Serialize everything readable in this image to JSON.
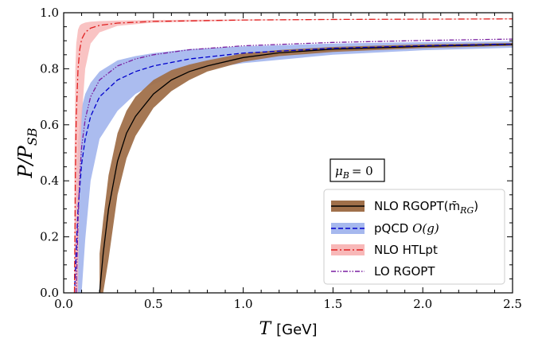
{
  "chart_data": {
    "type": "line",
    "title": "",
    "xlabel": "T",
    "xlabel_unit": "[GeV]",
    "ylabel": "P/P",
    "ylabel_sub": "SB",
    "xlim": [
      0,
      2.5
    ],
    "ylim": [
      0,
      1.0
    ],
    "x_ticks": [
      "0.0",
      "0.5",
      "1.0",
      "1.5",
      "2.0",
      "2.5"
    ],
    "y_ticks": [
      "0.0",
      "0.2",
      "0.4",
      "0.6",
      "0.8",
      "1.0"
    ],
    "grid": false,
    "legend_position": "bottom-right",
    "annotation": {
      "label": "μ",
      "sub": "B",
      "value": "= 0"
    },
    "series": [
      {
        "name": "NLO RGOPT(m̄",
        "name_sub": "RG",
        "name_suffix": ")",
        "style": "solid-line-with-band",
        "line_color": "#000000",
        "band_color": "#a0704a",
        "x": [
          0.2,
          0.22,
          0.25,
          0.3,
          0.35,
          0.4,
          0.5,
          0.6,
          0.7,
          0.8,
          1.0,
          1.2,
          1.5,
          2.0,
          2.5
        ],
        "y": [
          0.0,
          0.14,
          0.3,
          0.47,
          0.57,
          0.63,
          0.71,
          0.76,
          0.79,
          0.81,
          0.84,
          0.857,
          0.87,
          0.88,
          0.887
        ],
        "lower": [
          null,
          0.0,
          0.12,
          0.35,
          0.48,
          0.56,
          0.66,
          0.72,
          0.76,
          0.79,
          0.825,
          0.845,
          0.86,
          0.874,
          0.882
        ],
        "upper": [
          0.14,
          0.26,
          0.42,
          0.57,
          0.65,
          0.7,
          0.76,
          0.795,
          0.815,
          0.83,
          0.855,
          0.867,
          0.878,
          0.887,
          0.892
        ]
      },
      {
        "name": "pQCD ",
        "name_math": "O(g)",
        "style": "dashed-line-with-band",
        "line_color": "#0000cc",
        "band_color": "#a6b8ee",
        "x": [
          0.06,
          0.08,
          0.1,
          0.12,
          0.15,
          0.2,
          0.3,
          0.4,
          0.5,
          0.7,
          1.0,
          1.5,
          2.0,
          2.5
        ],
        "y": [
          0.0,
          0.3,
          0.46,
          0.55,
          0.63,
          0.7,
          0.76,
          0.79,
          0.81,
          0.835,
          0.856,
          0.873,
          0.882,
          0.888
        ],
        "lower": [
          null,
          null,
          0.0,
          0.19,
          0.4,
          0.55,
          0.65,
          0.71,
          0.745,
          0.79,
          0.82,
          0.85,
          0.866,
          0.875
        ],
        "upper": [
          0.2,
          0.54,
          0.66,
          0.71,
          0.75,
          0.79,
          0.83,
          0.845,
          0.856,
          0.87,
          0.88,
          0.89,
          0.895,
          0.898
        ]
      },
      {
        "name": "NLO HTLpt",
        "style": "dashdot-line-with-band",
        "line_color": "#e02020",
        "band_color": "#f8b8b8",
        "x": [
          0.06,
          0.065,
          0.07,
          0.08,
          0.09,
          0.1,
          0.12,
          0.15,
          0.2,
          0.3,
          0.5,
          1.0,
          1.5,
          2.0,
          2.5
        ],
        "y": [
          0.0,
          0.4,
          0.63,
          0.8,
          0.87,
          0.905,
          0.93,
          0.945,
          0.955,
          0.963,
          0.969,
          0.974,
          0.976,
          0.977,
          0.978
        ],
        "lower": [
          null,
          null,
          null,
          0.0,
          0.45,
          0.62,
          0.8,
          0.89,
          0.93,
          0.953,
          0.965,
          0.972,
          0.975,
          0.976,
          0.977
        ],
        "upper": [
          0.45,
          0.8,
          0.89,
          0.94,
          0.955,
          0.96,
          0.965,
          0.968,
          0.97,
          0.972,
          0.974,
          0.976,
          0.977,
          0.978,
          0.979
        ]
      },
      {
        "name": "LO RGOPT",
        "style": "dashdotdot-line",
        "line_color": "#7a1fa0",
        "x": [
          0.07,
          0.08,
          0.09,
          0.1,
          0.12,
          0.15,
          0.2,
          0.3,
          0.4,
          0.5,
          0.7,
          1.0,
          1.5,
          2.0,
          2.5
        ],
        "y": [
          0.0,
          0.26,
          0.42,
          0.52,
          0.62,
          0.7,
          0.76,
          0.81,
          0.835,
          0.85,
          0.868,
          0.882,
          0.894,
          0.901,
          0.906
        ]
      }
    ]
  }
}
